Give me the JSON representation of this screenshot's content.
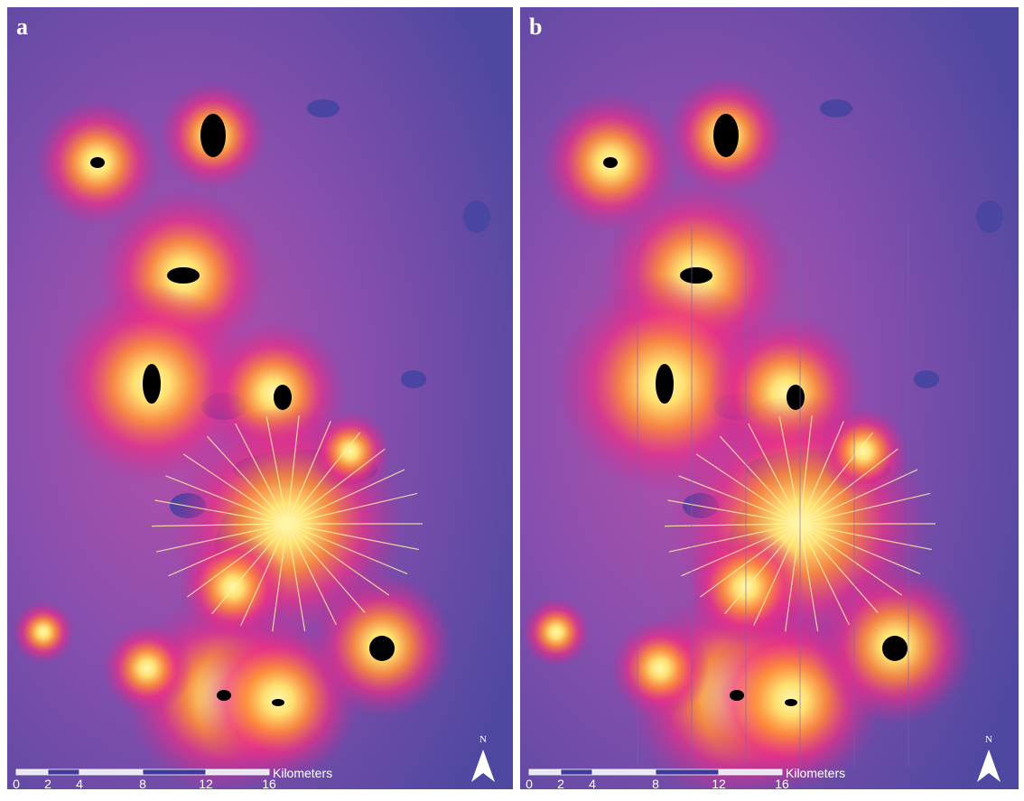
{
  "panels": [
    {
      "label": "a",
      "scale_bar": {
        "ticks": [
          0,
          2,
          4,
          8,
          12,
          16
        ],
        "unit": "Kilometers"
      },
      "north": "N"
    },
    {
      "label": "b",
      "scale_bar": {
        "ticks": [
          0,
          2,
          4,
          8,
          12,
          16
        ],
        "unit": "Kilometers"
      },
      "north": "N"
    }
  ]
}
